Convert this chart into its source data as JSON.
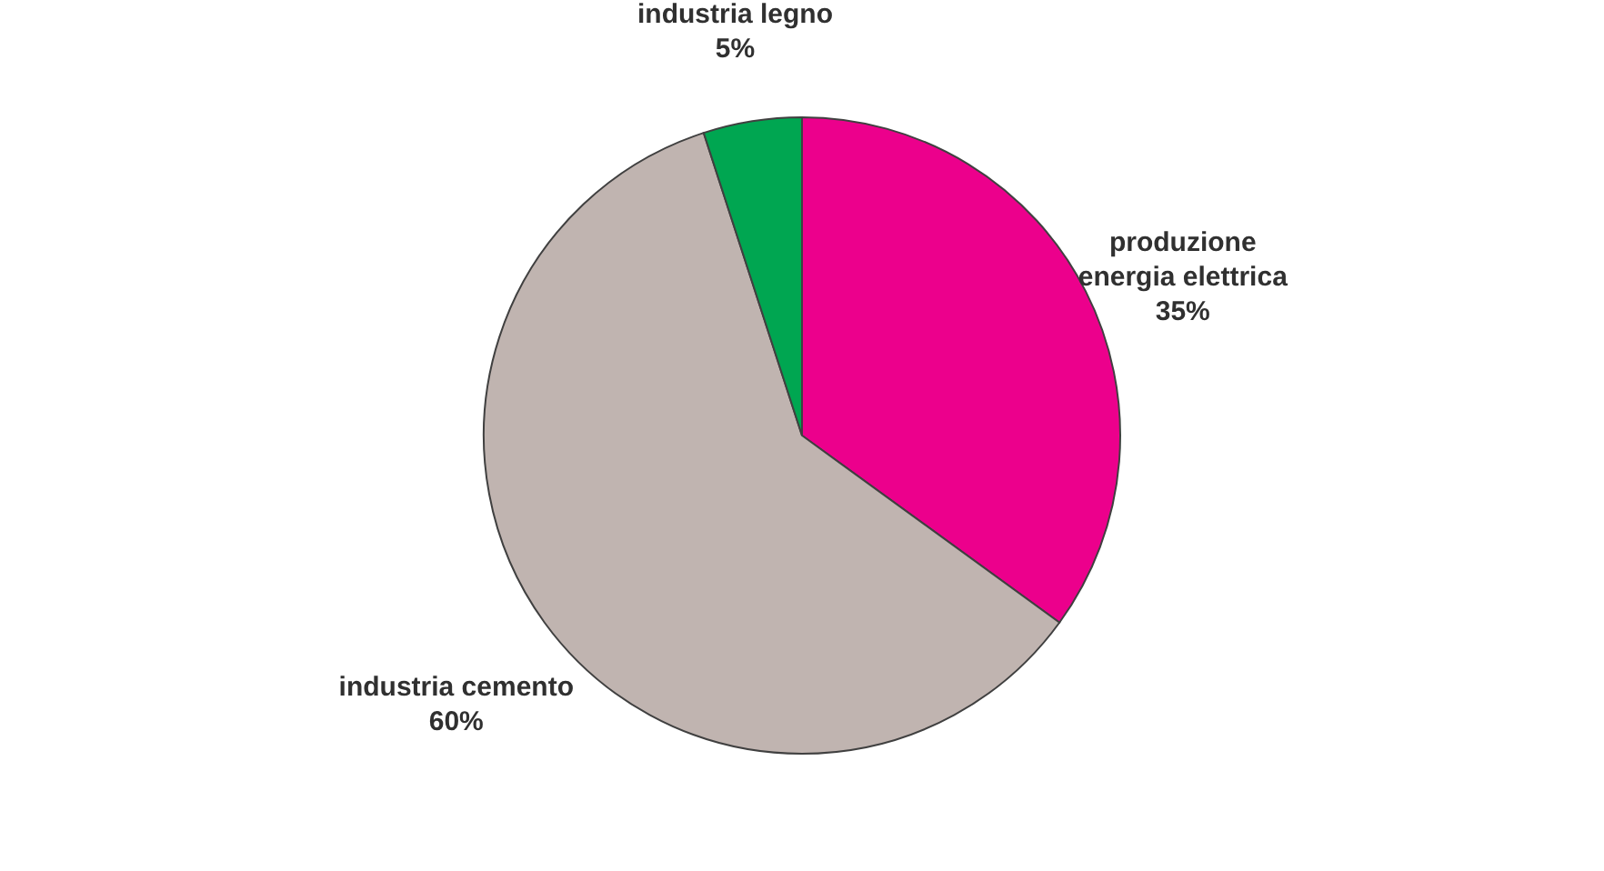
{
  "chart_data": {
    "type": "pie",
    "categories": [
      "produzione energia elettrica",
      "industria cemento",
      "industria legno"
    ],
    "values": [
      35,
      60,
      5
    ],
    "value_labels": [
      "35%",
      "60%",
      "5%"
    ],
    "colors": [
      "#ec008c",
      "#c0b4b0",
      "#00a651"
    ],
    "legend": false
  }
}
